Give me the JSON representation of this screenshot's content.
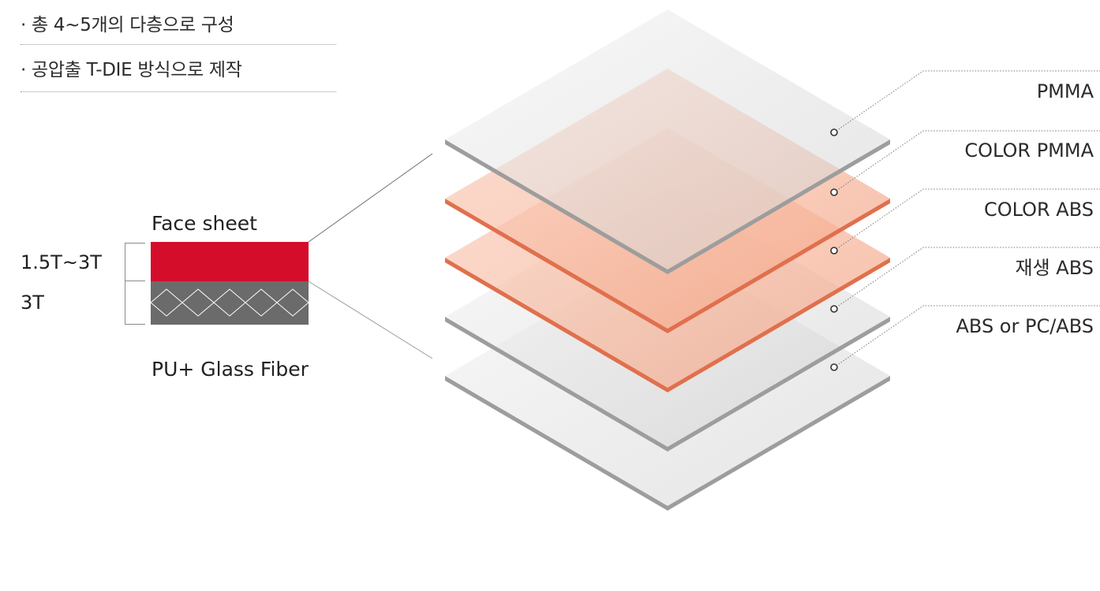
{
  "bullets": [
    "· 총 4~5개의 다층으로 구성",
    "· 공압출 T-DIE 방식으로 제작"
  ],
  "cross_section": {
    "top_caption": "Face sheet",
    "bottom_caption": "PU+ Glass Fiber",
    "thickness_labels": [
      "1.5T~3T",
      "3T"
    ],
    "colors": {
      "face_sheet": "#d40d2a",
      "core": "#6b6b6b",
      "core_pattern": "#ffffff"
    }
  },
  "layers": [
    {
      "label": "PMMA",
      "color": "#c9c9c9"
    },
    {
      "label": "COLOR PMMA",
      "color": "#f08a65"
    },
    {
      "label": "COLOR ABS",
      "color": "#f08a65"
    },
    {
      "label": "재생 ABS",
      "color": "#c9c9c9"
    },
    {
      "label": "ABS or PC/ABS",
      "color": "#c9c9c9"
    }
  ]
}
